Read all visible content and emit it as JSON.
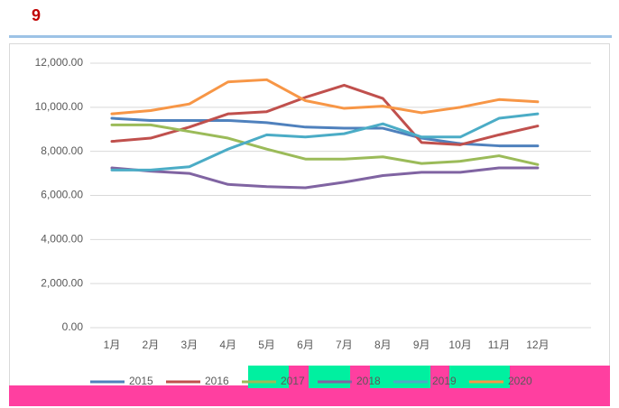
{
  "badge": "9",
  "chart_data": {
    "type": "line",
    "categories": [
      "1月",
      "2月",
      "3月",
      "4月",
      "5月",
      "6月",
      "7月",
      "8月",
      "9月",
      "10月",
      "11月",
      "12月"
    ],
    "ylim": [
      0,
      12000
    ],
    "yticks": [
      {
        "value": 0,
        "label": "0.00"
      },
      {
        "value": 2000,
        "label": "2,000.00"
      },
      {
        "value": 4000,
        "label": "4,000.00"
      },
      {
        "value": 6000,
        "label": "6,000.00"
      },
      {
        "value": 8000,
        "label": "8,000.00"
      },
      {
        "value": 10000,
        "label": "10,000.00"
      },
      {
        "value": 12000,
        "label": "12,000.00"
      }
    ],
    "grid": true,
    "legend": "bottom",
    "series": [
      {
        "name": "2015",
        "color": "#4f81bd",
        "values": [
          9500,
          9400,
          9400,
          9400,
          9300,
          9100,
          9050,
          9050,
          8600,
          8350,
          8250,
          8250
        ]
      },
      {
        "name": "2016",
        "color": "#c0504d",
        "values": [
          8450,
          8600,
          9100,
          9700,
          9800,
          10450,
          11000,
          10400,
          8400,
          8300,
          8750,
          9150
        ]
      },
      {
        "name": "2017",
        "color": "#9bbb59",
        "values": [
          9200,
          9200,
          8900,
          8600,
          8100,
          7650,
          7650,
          7750,
          7450,
          7550,
          7800,
          7400
        ]
      },
      {
        "name": "2018",
        "color": "#8064a2",
        "values": [
          7250,
          7100,
          7000,
          6500,
          6400,
          6350,
          6600,
          6900,
          7050,
          7050,
          7250,
          7250
        ]
      },
      {
        "name": "2019",
        "color": "#4bacc6",
        "values": [
          7150,
          7150,
          7300,
          8100,
          8750,
          8650,
          8800,
          9250,
          8650,
          8650,
          9500,
          9700
        ]
      },
      {
        "name": "2020",
        "color": "#f79646",
        "values": [
          9700,
          9850,
          10150,
          11150,
          11250,
          10300,
          9950,
          10050,
          9750,
          10000,
          10350,
          10250
        ]
      }
    ]
  }
}
